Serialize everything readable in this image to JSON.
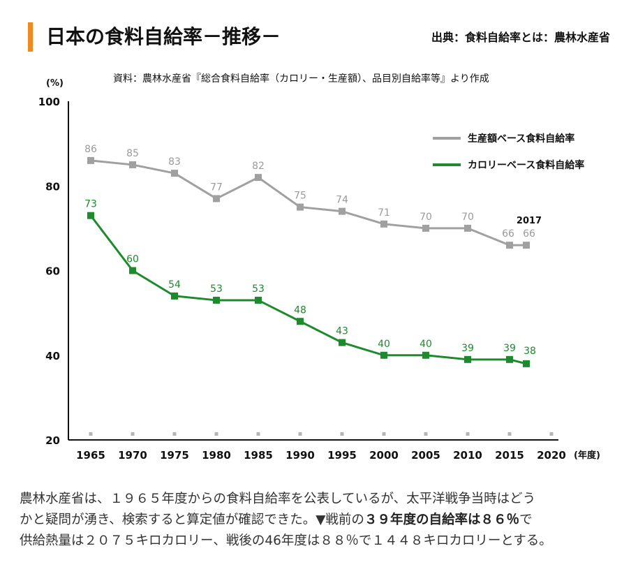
{
  "header": {
    "title": "日本の食料自給率－推移－",
    "source": "出典：食料自給率とは：農林水産省",
    "subtitle": "資料：農林水産省『総合食料自給率（カロリー・生産額）、品目別自給率等』より作成"
  },
  "colors": {
    "accent": "#f08a1e",
    "gray_series": "#a0a0a0",
    "green_series": "#1e8a2e"
  },
  "chart_data": {
    "type": "line",
    "title": "日本の食料自給率－推移－",
    "y_unit": "(%)",
    "x_unit": "(年度)",
    "ylim": [
      20,
      100
    ],
    "yticks": [
      20,
      40,
      60,
      80,
      100
    ],
    "xlim": [
      1965,
      2020
    ],
    "xticks": [
      1965,
      1970,
      1975,
      1980,
      1985,
      1990,
      1995,
      2000,
      2005,
      2010,
      2015,
      2020
    ],
    "annotation": "2017",
    "legend_position": "top-right",
    "series": [
      {
        "name": "生産額ベース食料自給率",
        "color": "#a0a0a0",
        "x": [
          1965,
          1970,
          1975,
          1980,
          1985,
          1990,
          1995,
          2000,
          2005,
          2010,
          2015,
          2017
        ],
        "values": [
          86,
          85,
          83,
          77,
          82,
          75,
          74,
          71,
          70,
          70,
          66,
          66
        ]
      },
      {
        "name": "カロリーベース食料自給率",
        "color": "#1e8a2e",
        "x": [
          1965,
          1970,
          1975,
          1980,
          1985,
          1990,
          1995,
          2000,
          2005,
          2010,
          2015,
          2017
        ],
        "values": [
          73,
          60,
          54,
          53,
          53,
          48,
          43,
          40,
          40,
          39,
          39,
          38
        ]
      }
    ]
  },
  "body": {
    "p1": "農林水産省は、１９６５年度からの食料自給率を公表しているが、太平洋戦争当時はどう",
    "p2a": "かと疑問が湧き、検索すると算定値が確認できた。▼戦前の",
    "p2b": "３９年度の自給率は８６％",
    "p2c": "で",
    "p3": "供給熱量は２０７５キロカロリー、戦後の46年度は８８％で１４４８キロカロリーとする。"
  }
}
